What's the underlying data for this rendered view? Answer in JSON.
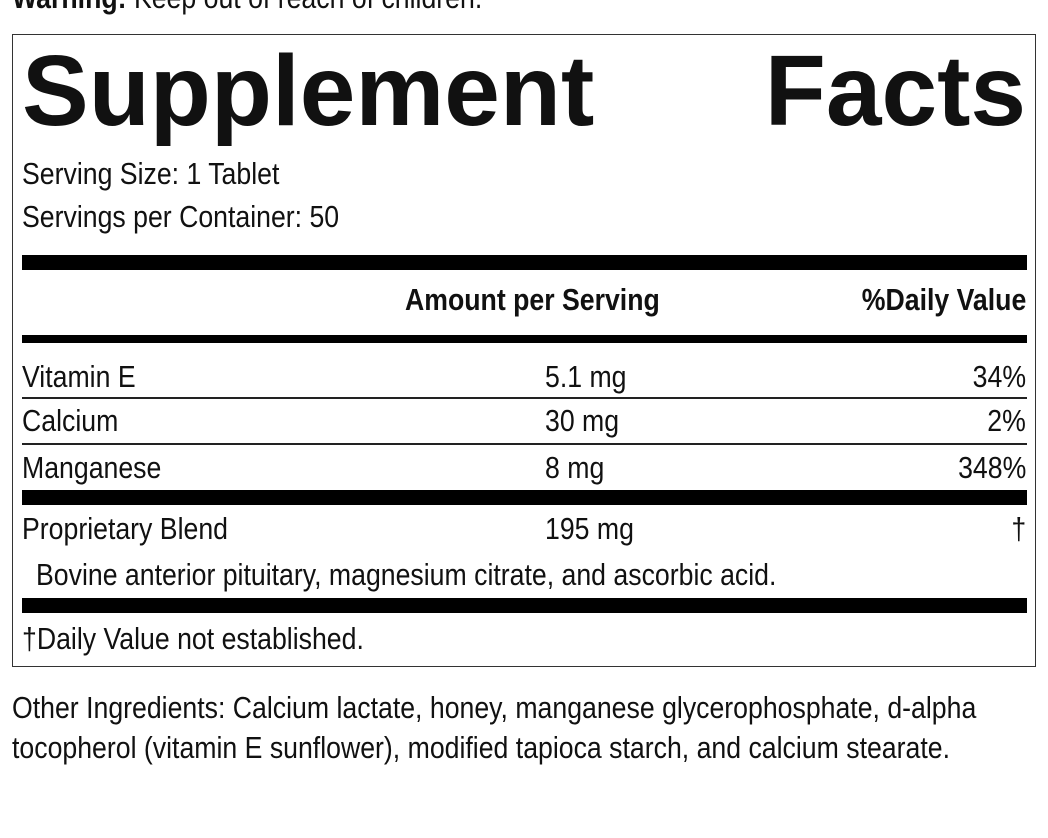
{
  "warning": {
    "label": "Warning:",
    "text": "Keep out of reach of children."
  },
  "title": "Supplement Facts",
  "serving_size": "Serving Size: 1 Tablet",
  "servings_per_container": "Servings per Container: 50",
  "table": {
    "columns": [
      "Amount per Serving",
      "%Daily Value"
    ],
    "rows": [
      [
        "Vitamin E",
        "5.1 mg",
        "34%"
      ],
      [
        "Calcium",
        "30 mg",
        "2%"
      ],
      [
        "Manganese",
        "8 mg",
        "348%"
      ],
      [
        "Proprietary Blend",
        "195 mg",
        "†"
      ]
    ]
  },
  "blend_ingredients": "Bovine anterior pituitary, magnesium citrate, and ascorbic acid.",
  "footnote": "†Daily Value not established.",
  "other_ingredients": "Other Ingredients: Calcium lactate, honey, manganese glycerophosphate, d-alpha tocopherol (vitamin E sunflower), modified tapioca starch, and calcium stearate."
}
